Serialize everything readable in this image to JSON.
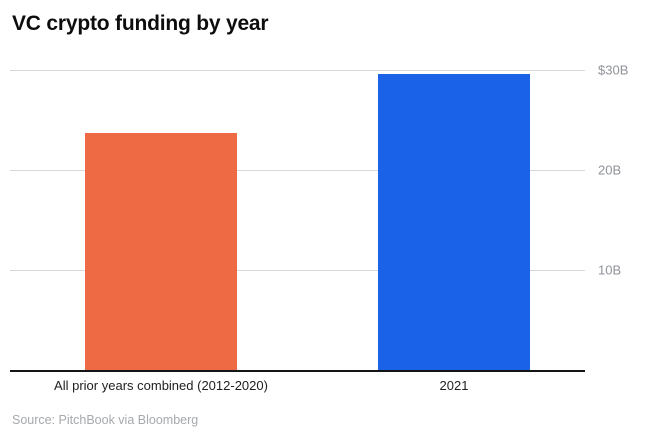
{
  "title": "VC crypto funding by year",
  "source": "Source: PitchBook via Bloomberg",
  "chart_data": {
    "type": "bar",
    "title": "VC crypto funding by year",
    "categories": [
      "All prior years combined (2012-2020)",
      "2021"
    ],
    "values": [
      23.7,
      29.6
    ],
    "unit": "billions of USD",
    "ylim": [
      0,
      30
    ],
    "yticks": [
      {
        "value": 30,
        "label": "$30B"
      },
      {
        "value": 20,
        "label": "20B"
      },
      {
        "value": 10,
        "label": "10B"
      }
    ],
    "bar_colors": [
      "#ed6a45",
      "#1a63e8"
    ],
    "grid": "horizontal",
    "tick_label_position": "right",
    "xlabel": "",
    "ylabel": ""
  }
}
